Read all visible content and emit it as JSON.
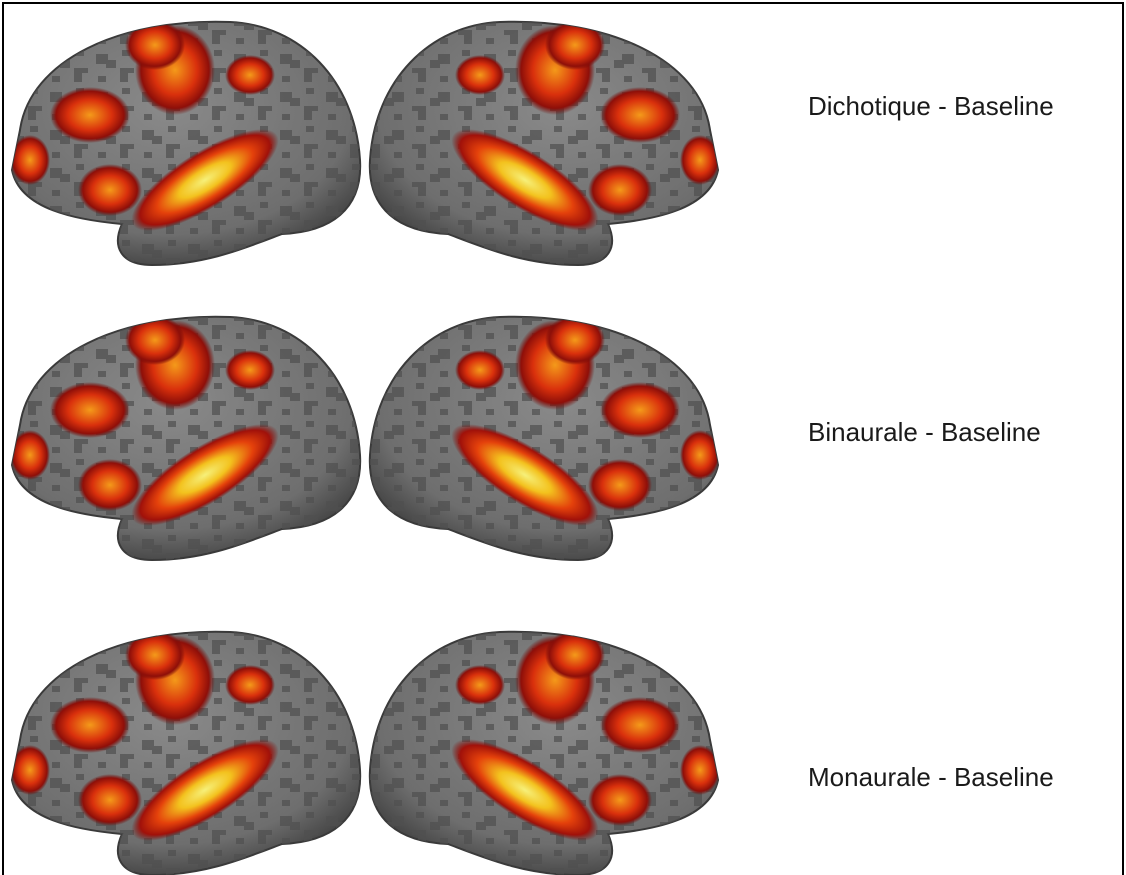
{
  "rows": [
    {
      "label": "Dichotique - Baseline"
    },
    {
      "label": "Binaurale - Baseline"
    },
    {
      "label": "Monaurale - Baseline"
    }
  ]
}
